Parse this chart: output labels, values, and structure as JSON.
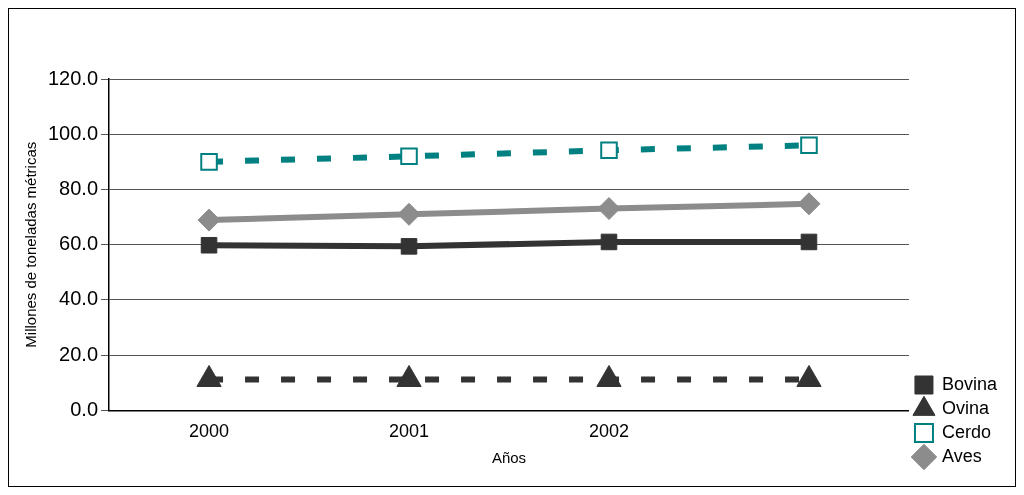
{
  "chart_data": {
    "type": "line",
    "xlabel": "Años",
    "ylabel": "Millones de toneladas métricas",
    "categories": [
      "2000",
      "2001",
      "2002",
      null
    ],
    "series": [
      {
        "name": "Bovina",
        "color": "#333333",
        "values": [
          59.8,
          59.4,
          61.0,
          61.0
        ],
        "marker": "square",
        "line_style": "solid"
      },
      {
        "name": "Ovina",
        "color": "#333333",
        "values": [
          11.2,
          11.2,
          11.2,
          11.2
        ],
        "marker": "triangle",
        "line_style": "dashed"
      },
      {
        "name": "Cerdo",
        "color": "#008080",
        "values": [
          90.0,
          92.0,
          94.2,
          96.0
        ],
        "marker": "square",
        "line_style": "dashed"
      },
      {
        "name": "Aves",
        "color": "#8c8c8c",
        "values": [
          68.9,
          71.0,
          73.1,
          74.8
        ],
        "marker": "diamond",
        "line_style": "solid"
      }
    ],
    "ylim": [
      0,
      120
    ],
    "yticks": [
      {
        "value": 0,
        "label": "0.0"
      },
      {
        "value": 20,
        "label": "20.0"
      },
      {
        "value": 40,
        "label": "40.0"
      },
      {
        "value": 60,
        "label": "60.0"
      },
      {
        "value": 80,
        "label": "80.0"
      },
      {
        "value": 100,
        "label": "100.0"
      },
      {
        "value": 120,
        "label": "120.0"
      }
    ],
    "grid": "y",
    "legend": "bottom right"
  }
}
